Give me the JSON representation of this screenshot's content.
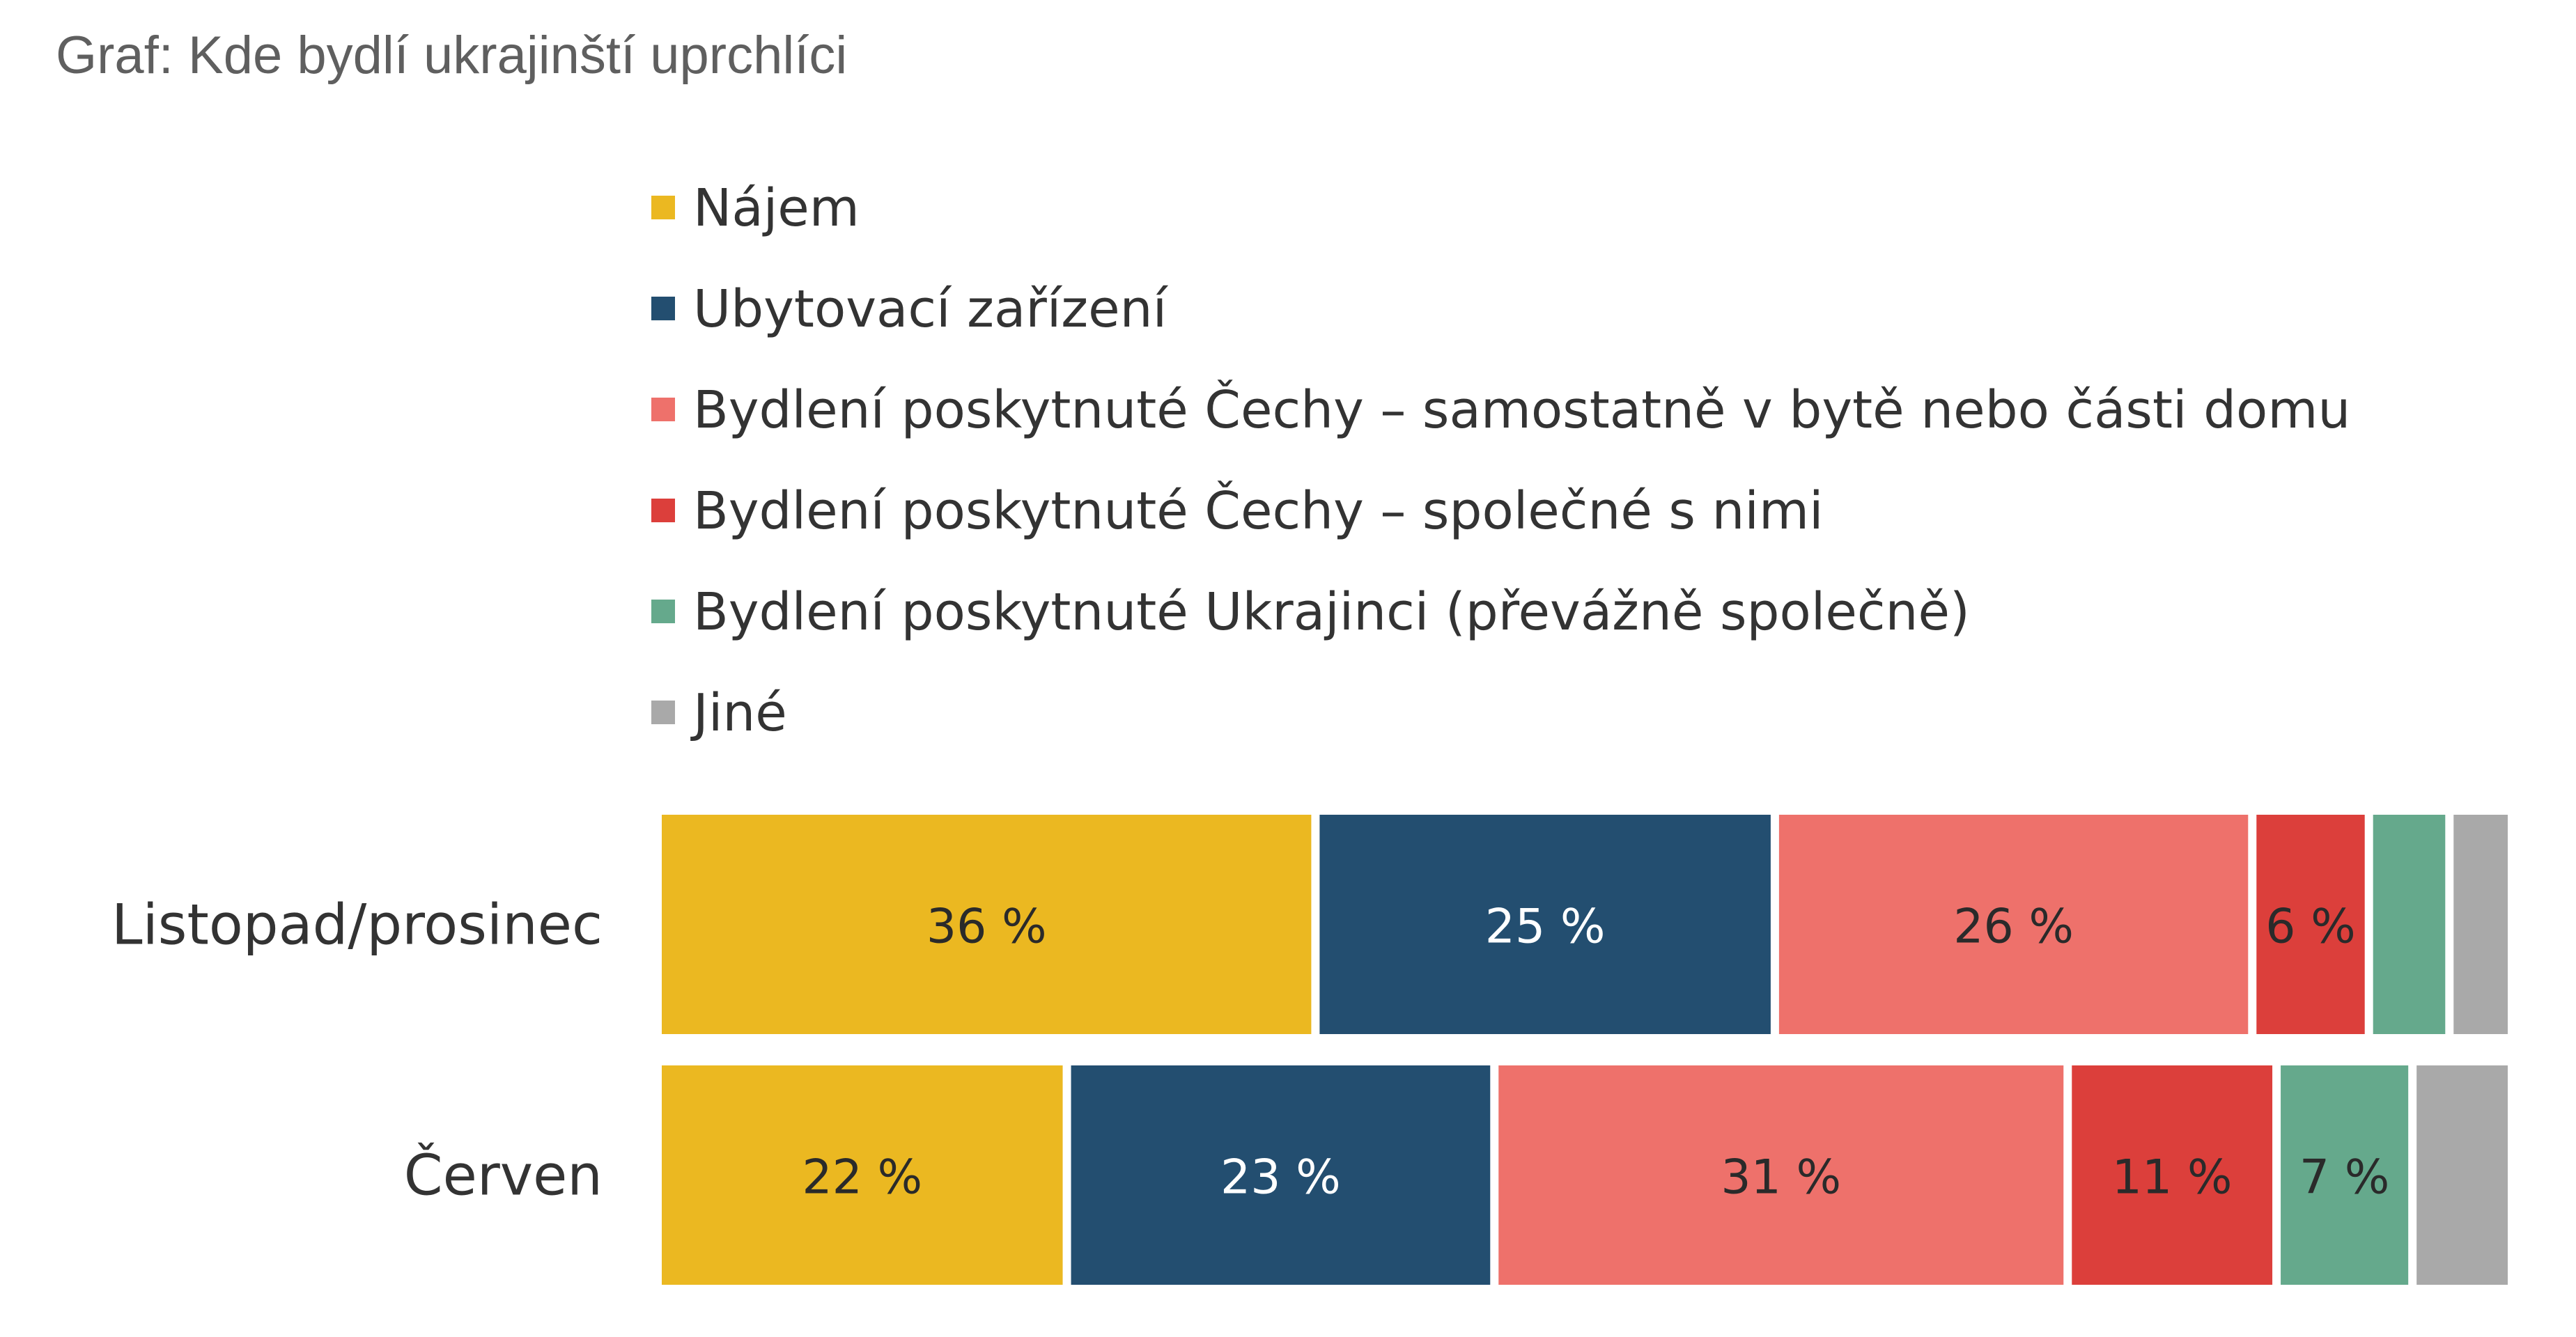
{
  "chart_data": {
    "type": "bar",
    "orientation": "horizontal",
    "stacked": true,
    "title": "Graf: Kde bydlí ukrajinští uprchlíci",
    "legend_position": "top",
    "grid": false,
    "xlim": [
      0,
      100
    ],
    "categories": [
      "Listopad/prosinec",
      "Červen"
    ],
    "series": [
      {
        "name": "Nájem",
        "color": "#ebb821",
        "label_color": "#2a2a2a",
        "values": [
          36,
          22
        ]
      },
      {
        "name": "Ubytovací zařízení",
        "color": "#234e70",
        "label_color": "#ffffff",
        "values": [
          25,
          23
        ]
      },
      {
        "name": "Bydlení poskytnuté Čechy – samostatně v bytě nebo části domu",
        "color": "#ee716b",
        "label_color": "#2a2a2a",
        "values": [
          26,
          31
        ]
      },
      {
        "name": "Bydlení poskytnuté Čechy – společné s nimi",
        "color": "#dc3f3b",
        "label_color": "#2a2a2a",
        "values": [
          6,
          11
        ]
      },
      {
        "name": "Bydlení poskytnuté Ukrajinci (převážně společně)",
        "color": "#65a98c",
        "label_color": "#2a2a2a",
        "values": [
          4,
          7
        ]
      },
      {
        "name": "Jiné",
        "color": "#a9a9a9",
        "label_color": "#2a2a2a",
        "values": [
          3,
          5
        ]
      }
    ],
    "data_labels": [
      [
        "36 %",
        "25 %",
        "26 %",
        "6 %",
        "",
        ""
      ],
      [
        "22 %",
        "23 %",
        "31 %",
        "11 %",
        "7 %",
        ""
      ]
    ]
  }
}
